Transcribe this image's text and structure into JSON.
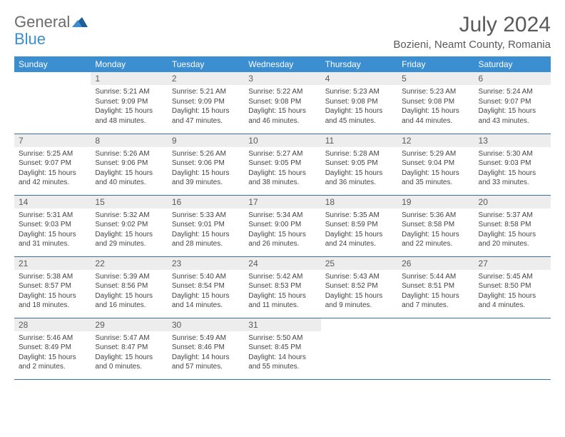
{
  "brand": {
    "part1": "General",
    "part2": "Blue"
  },
  "title": "July 2024",
  "location": "Bozieni, Neamt County, Romania",
  "colors": {
    "header_bg": "#3b8ed0",
    "header_text": "#ffffff",
    "daynum_bg": "#ededed",
    "text": "#444444",
    "border": "#3b6fa0"
  },
  "weekdays": [
    "Sunday",
    "Monday",
    "Tuesday",
    "Wednesday",
    "Thursday",
    "Friday",
    "Saturday"
  ],
  "weeks": [
    [
      {
        "empty": true
      },
      {
        "n": "1",
        "sr": "Sunrise: 5:21 AM",
        "ss": "Sunset: 9:09 PM",
        "dl": "Daylight: 15 hours and 48 minutes."
      },
      {
        "n": "2",
        "sr": "Sunrise: 5:21 AM",
        "ss": "Sunset: 9:09 PM",
        "dl": "Daylight: 15 hours and 47 minutes."
      },
      {
        "n": "3",
        "sr": "Sunrise: 5:22 AM",
        "ss": "Sunset: 9:08 PM",
        "dl": "Daylight: 15 hours and 46 minutes."
      },
      {
        "n": "4",
        "sr": "Sunrise: 5:23 AM",
        "ss": "Sunset: 9:08 PM",
        "dl": "Daylight: 15 hours and 45 minutes."
      },
      {
        "n": "5",
        "sr": "Sunrise: 5:23 AM",
        "ss": "Sunset: 9:08 PM",
        "dl": "Daylight: 15 hours and 44 minutes."
      },
      {
        "n": "6",
        "sr": "Sunrise: 5:24 AM",
        "ss": "Sunset: 9:07 PM",
        "dl": "Daylight: 15 hours and 43 minutes."
      }
    ],
    [
      {
        "n": "7",
        "sr": "Sunrise: 5:25 AM",
        "ss": "Sunset: 9:07 PM",
        "dl": "Daylight: 15 hours and 42 minutes."
      },
      {
        "n": "8",
        "sr": "Sunrise: 5:26 AM",
        "ss": "Sunset: 9:06 PM",
        "dl": "Daylight: 15 hours and 40 minutes."
      },
      {
        "n": "9",
        "sr": "Sunrise: 5:26 AM",
        "ss": "Sunset: 9:06 PM",
        "dl": "Daylight: 15 hours and 39 minutes."
      },
      {
        "n": "10",
        "sr": "Sunrise: 5:27 AM",
        "ss": "Sunset: 9:05 PM",
        "dl": "Daylight: 15 hours and 38 minutes."
      },
      {
        "n": "11",
        "sr": "Sunrise: 5:28 AM",
        "ss": "Sunset: 9:05 PM",
        "dl": "Daylight: 15 hours and 36 minutes."
      },
      {
        "n": "12",
        "sr": "Sunrise: 5:29 AM",
        "ss": "Sunset: 9:04 PM",
        "dl": "Daylight: 15 hours and 35 minutes."
      },
      {
        "n": "13",
        "sr": "Sunrise: 5:30 AM",
        "ss": "Sunset: 9:03 PM",
        "dl": "Daylight: 15 hours and 33 minutes."
      }
    ],
    [
      {
        "n": "14",
        "sr": "Sunrise: 5:31 AM",
        "ss": "Sunset: 9:03 PM",
        "dl": "Daylight: 15 hours and 31 minutes."
      },
      {
        "n": "15",
        "sr": "Sunrise: 5:32 AM",
        "ss": "Sunset: 9:02 PM",
        "dl": "Daylight: 15 hours and 29 minutes."
      },
      {
        "n": "16",
        "sr": "Sunrise: 5:33 AM",
        "ss": "Sunset: 9:01 PM",
        "dl": "Daylight: 15 hours and 28 minutes."
      },
      {
        "n": "17",
        "sr": "Sunrise: 5:34 AM",
        "ss": "Sunset: 9:00 PM",
        "dl": "Daylight: 15 hours and 26 minutes."
      },
      {
        "n": "18",
        "sr": "Sunrise: 5:35 AM",
        "ss": "Sunset: 8:59 PM",
        "dl": "Daylight: 15 hours and 24 minutes."
      },
      {
        "n": "19",
        "sr": "Sunrise: 5:36 AM",
        "ss": "Sunset: 8:58 PM",
        "dl": "Daylight: 15 hours and 22 minutes."
      },
      {
        "n": "20",
        "sr": "Sunrise: 5:37 AM",
        "ss": "Sunset: 8:58 PM",
        "dl": "Daylight: 15 hours and 20 minutes."
      }
    ],
    [
      {
        "n": "21",
        "sr": "Sunrise: 5:38 AM",
        "ss": "Sunset: 8:57 PM",
        "dl": "Daylight: 15 hours and 18 minutes."
      },
      {
        "n": "22",
        "sr": "Sunrise: 5:39 AM",
        "ss": "Sunset: 8:56 PM",
        "dl": "Daylight: 15 hours and 16 minutes."
      },
      {
        "n": "23",
        "sr": "Sunrise: 5:40 AM",
        "ss": "Sunset: 8:54 PM",
        "dl": "Daylight: 15 hours and 14 minutes."
      },
      {
        "n": "24",
        "sr": "Sunrise: 5:42 AM",
        "ss": "Sunset: 8:53 PM",
        "dl": "Daylight: 15 hours and 11 minutes."
      },
      {
        "n": "25",
        "sr": "Sunrise: 5:43 AM",
        "ss": "Sunset: 8:52 PM",
        "dl": "Daylight: 15 hours and 9 minutes."
      },
      {
        "n": "26",
        "sr": "Sunrise: 5:44 AM",
        "ss": "Sunset: 8:51 PM",
        "dl": "Daylight: 15 hours and 7 minutes."
      },
      {
        "n": "27",
        "sr": "Sunrise: 5:45 AM",
        "ss": "Sunset: 8:50 PM",
        "dl": "Daylight: 15 hours and 4 minutes."
      }
    ],
    [
      {
        "n": "28",
        "sr": "Sunrise: 5:46 AM",
        "ss": "Sunset: 8:49 PM",
        "dl": "Daylight: 15 hours and 2 minutes."
      },
      {
        "n": "29",
        "sr": "Sunrise: 5:47 AM",
        "ss": "Sunset: 8:47 PM",
        "dl": "Daylight: 15 hours and 0 minutes."
      },
      {
        "n": "30",
        "sr": "Sunrise: 5:49 AM",
        "ss": "Sunset: 8:46 PM",
        "dl": "Daylight: 14 hours and 57 minutes."
      },
      {
        "n": "31",
        "sr": "Sunrise: 5:50 AM",
        "ss": "Sunset: 8:45 PM",
        "dl": "Daylight: 14 hours and 55 minutes."
      },
      {
        "empty": true
      },
      {
        "empty": true
      },
      {
        "empty": true
      }
    ]
  ]
}
